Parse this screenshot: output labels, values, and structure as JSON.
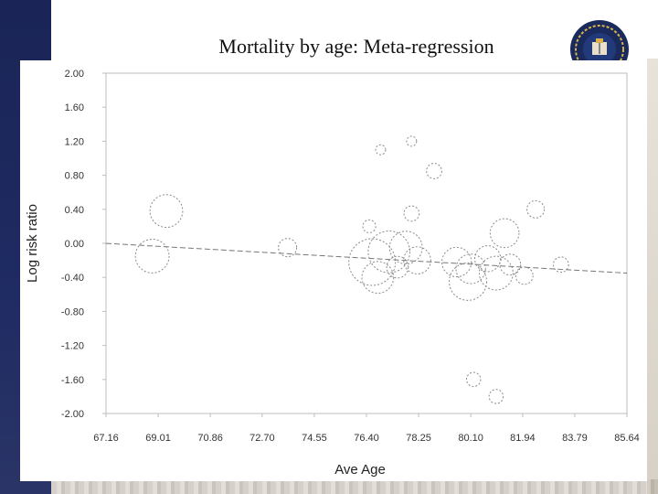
{
  "slide": {
    "title": "Mortality by age: Meta-regression"
  },
  "chart_data": {
    "type": "scatter",
    "title": "Mortality by age: Meta-regression",
    "xlabel": "Ave Age",
    "ylabel": "Log risk ratio",
    "xlim": [
      67.16,
      85.64
    ],
    "ylim": [
      -2.0,
      2.0
    ],
    "x_ticks": [
      "67.16",
      "69.01",
      "70.86",
      "72.70",
      "74.55",
      "76.40",
      "78.25",
      "80.10",
      "81.94",
      "83.79",
      "85.64"
    ],
    "y_ticks": [
      "2.00",
      "1.60",
      "1.20",
      "0.80",
      "0.40",
      "0.00",
      "-0.40",
      "-0.80",
      "-1.20",
      "-1.60",
      "-2.00"
    ],
    "grid": false,
    "legend": "none",
    "regression_line": {
      "x": [
        67.16,
        85.64
      ],
      "y": [
        0.0,
        -0.35
      ]
    },
    "points": [
      {
        "x": 69.3,
        "y": 0.38,
        "weight": 3.2
      },
      {
        "x": 68.8,
        "y": -0.15,
        "weight": 3.4
      },
      {
        "x": 73.6,
        "y": -0.05,
        "weight": 1.0
      },
      {
        "x": 76.6,
        "y": -0.22,
        "weight": 6.5
      },
      {
        "x": 77.2,
        "y": -0.1,
        "weight": 5.2
      },
      {
        "x": 76.8,
        "y": -0.4,
        "weight": 3.0
      },
      {
        "x": 77.8,
        "y": -0.05,
        "weight": 3.2
      },
      {
        "x": 78.2,
        "y": -0.2,
        "weight": 2.2
      },
      {
        "x": 77.5,
        "y": -0.28,
        "weight": 1.4
      },
      {
        "x": 78.0,
        "y": 0.35,
        "weight": 0.7
      },
      {
        "x": 76.5,
        "y": 0.2,
        "weight": 0.5
      },
      {
        "x": 76.9,
        "y": 1.1,
        "weight": 0.3
      },
      {
        "x": 78.0,
        "y": 1.2,
        "weight": 0.3
      },
      {
        "x": 78.8,
        "y": 0.85,
        "weight": 0.7
      },
      {
        "x": 79.6,
        "y": -0.22,
        "weight": 2.6
      },
      {
        "x": 80.0,
        "y": -0.45,
        "weight": 4.2
      },
      {
        "x": 80.1,
        "y": -0.3,
        "weight": 2.6
      },
      {
        "x": 80.7,
        "y": -0.18,
        "weight": 2.0
      },
      {
        "x": 81.3,
        "y": 0.12,
        "weight": 2.5
      },
      {
        "x": 81.0,
        "y": -0.35,
        "weight": 3.4
      },
      {
        "x": 81.5,
        "y": -0.25,
        "weight": 1.3
      },
      {
        "x": 82.0,
        "y": -0.38,
        "weight": 0.9
      },
      {
        "x": 82.4,
        "y": 0.4,
        "weight": 0.9
      },
      {
        "x": 83.3,
        "y": -0.25,
        "weight": 0.7
      },
      {
        "x": 80.2,
        "y": -1.6,
        "weight": 0.6
      },
      {
        "x": 81.0,
        "y": -1.8,
        "weight": 0.6
      }
    ]
  }
}
